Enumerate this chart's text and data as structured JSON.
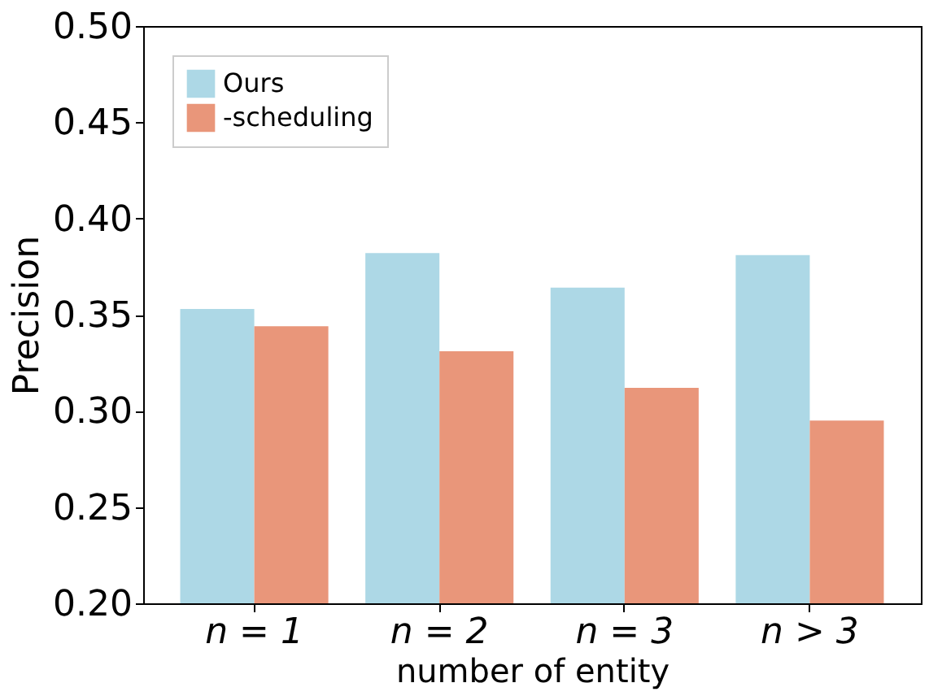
{
  "chart_data": {
    "type": "bar",
    "xlabel": "number of entity",
    "ylabel": "Precision",
    "categories": [
      "n = 1",
      "n = 2",
      "n = 3",
      "n > 3"
    ],
    "series": [
      {
        "name": "Ours",
        "color": "#add8e6",
        "values": [
          0.353,
          0.382,
          0.364,
          0.381
        ]
      },
      {
        "name": "-scheduling",
        "color": "#e9967a",
        "values": [
          0.344,
          0.331,
          0.312,
          0.295
        ]
      }
    ],
    "ylim": [
      0.2,
      0.5
    ],
    "yticks": [
      {
        "value": 0.2,
        "label": "0.20"
      },
      0.25,
      {
        "value": 0.3,
        "label": "0.30"
      },
      0.35,
      {
        "value": 0.4,
        "label": "0.40"
      },
      0.45,
      {
        "value": 0.5,
        "label": "0.50"
      }
    ],
    "legend": "top left",
    "grid": false
  }
}
